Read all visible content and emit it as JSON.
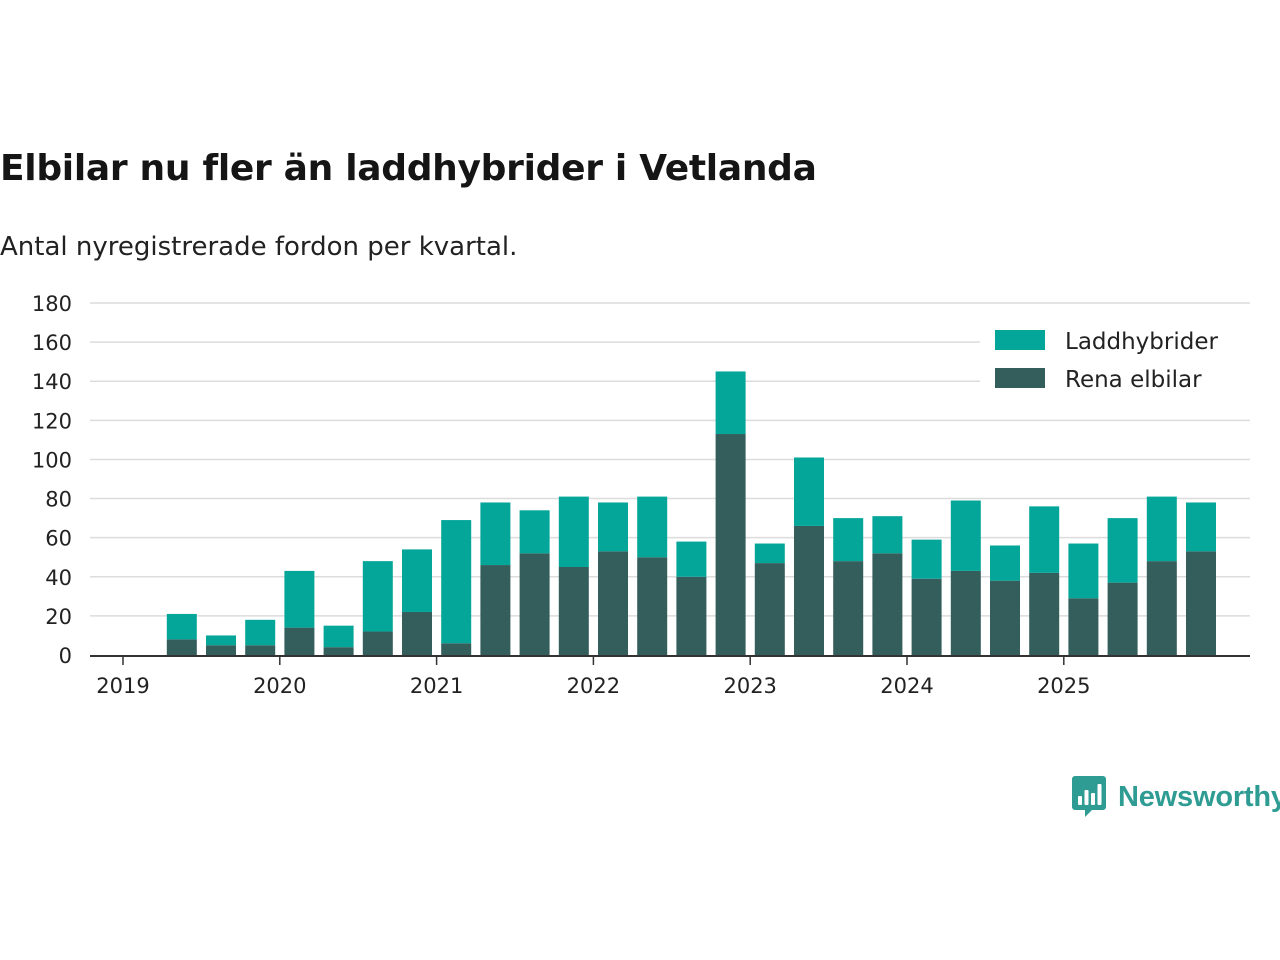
{
  "title": "Elbilar nu fler än laddhybrider i Vetlanda",
  "subtitle": "Antal nyregistrerade fordon per kvartal.",
  "brand": {
    "name": "Newsworthy",
    "icon": "bar-chart-speech-bubble-icon",
    "color": "#2f9c93"
  },
  "chart_data": {
    "type": "bar",
    "stacked": true,
    "title": "Elbilar nu fler än laddhybrider i Vetlanda",
    "subtitle": "Antal nyregistrerade fordon per kvartal.",
    "xlabel": "",
    "ylabel": "",
    "ylim": [
      0,
      180
    ],
    "yticks": [
      0,
      20,
      40,
      60,
      80,
      100,
      120,
      140,
      160,
      180
    ],
    "xticks": [
      "2019",
      "2020",
      "2021",
      "2022",
      "2023",
      "2024",
      "2025"
    ],
    "grid": true,
    "legend_position": "top-right",
    "categories": [
      "2019 Q1",
      "2019 Q2",
      "2019 Q3",
      "2019 Q4",
      "2020 Q1",
      "2020 Q2",
      "2020 Q3",
      "2020 Q4",
      "2021 Q1",
      "2021 Q2",
      "2021 Q3",
      "2021 Q4",
      "2022 Q1",
      "2022 Q2",
      "2022 Q3",
      "2022 Q4",
      "2023 Q1",
      "2023 Q2",
      "2023 Q3",
      "2023 Q4",
      "2024 Q1",
      "2024 Q2",
      "2024 Q3",
      "2024 Q4",
      "2025 Q1",
      "2025 Q2",
      "2025 Q3",
      "2025 Q4"
    ],
    "series": [
      {
        "name": "Rena elbilar",
        "color": "#335e5b",
        "values": [
          0,
          8,
          5,
          5,
          14,
          4,
          12,
          22,
          6,
          46,
          52,
          45,
          53,
          50,
          40,
          113,
          47,
          66,
          48,
          52,
          39,
          43,
          38,
          42,
          29,
          37,
          48,
          53
        ]
      },
      {
        "name": "Laddhybrider",
        "color": "#05a69a",
        "values": [
          0,
          13,
          5,
          13,
          29,
          11,
          36,
          32,
          63,
          32,
          22,
          36,
          25,
          31,
          18,
          32,
          10,
          35,
          22,
          19,
          20,
          36,
          18,
          34,
          28,
          33,
          33,
          25
        ]
      }
    ],
    "legend": [
      "Laddhybrider",
      "Rena elbilar"
    ]
  }
}
